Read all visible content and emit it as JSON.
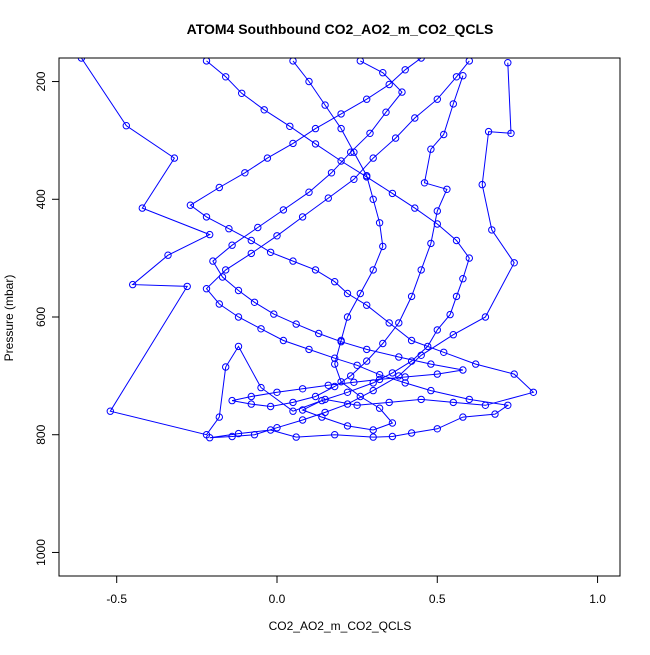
{
  "chart_data": {
    "type": "scatter",
    "title": "ATOM4 Southbound CO2_AO2_m_CO2_QCLS",
    "xlabel": "CO2_AO2_m_CO2_QCLS",
    "ylabel": "Pressure (mbar)",
    "xlim": [
      -0.68,
      1.07
    ],
    "ylim": [
      1040,
      160
    ],
    "y_reversed": true,
    "x_ticks": [
      -0.5,
      0.0,
      0.5,
      1.0
    ],
    "x_tick_labels": [
      "-0.5",
      "0.0",
      "0.5",
      "1.0"
    ],
    "y_ticks": [
      200,
      400,
      600,
      800,
      1000
    ],
    "y_tick_labels": [
      "200",
      "400",
      "600",
      "800",
      "1000"
    ],
    "grid": false,
    "legend": "none",
    "marker": "open-circle",
    "connect_points": true,
    "series_color": "#0000ff",
    "series": [
      {
        "name": "",
        "points": [
          [
            -0.61,
            160
          ],
          [
            -0.47,
            275
          ],
          [
            -0.32,
            330
          ],
          [
            -0.42,
            415
          ],
          [
            -0.21,
            460
          ],
          [
            -0.34,
            495
          ],
          [
            -0.45,
            545
          ],
          [
            -0.28,
            548
          ],
          [
            -0.52,
            760
          ],
          [
            -0.22,
            800
          ],
          [
            -0.18,
            770
          ],
          [
            -0.16,
            685
          ],
          [
            -0.12,
            650
          ],
          [
            -0.05,
            720
          ],
          [
            0.05,
            760
          ],
          [
            0.15,
            740
          ],
          [
            0.25,
            750
          ],
          [
            0.35,
            745
          ],
          [
            0.45,
            740
          ],
          [
            0.55,
            745
          ],
          [
            0.65,
            750
          ],
          [
            0.8,
            728
          ],
          [
            0.74,
            697
          ],
          [
            0.62,
            680
          ],
          [
            0.52,
            660
          ],
          [
            0.42,
            640
          ],
          [
            0.35,
            610
          ],
          [
            0.28,
            580
          ],
          [
            0.22,
            560
          ],
          [
            0.18,
            540
          ],
          [
            0.12,
            520
          ],
          [
            0.05,
            505
          ],
          [
            -0.02,
            490
          ],
          [
            -0.08,
            470
          ],
          [
            -0.15,
            450
          ],
          [
            -0.22,
            430
          ],
          [
            -0.27,
            410
          ],
          [
            -0.18,
            380
          ],
          [
            -0.1,
            355
          ],
          [
            -0.03,
            330
          ],
          [
            0.05,
            305
          ],
          [
            0.12,
            280
          ],
          [
            0.2,
            255
          ],
          [
            0.28,
            230
          ],
          [
            0.35,
            205
          ],
          [
            0.4,
            180
          ],
          [
            0.45,
            160
          ]
        ]
      },
      {
        "name": "",
        "points": [
          [
            0.72,
            168
          ],
          [
            0.73,
            288
          ],
          [
            0.66,
            285
          ],
          [
            0.64,
            375
          ],
          [
            0.67,
            452
          ],
          [
            0.74,
            508
          ],
          [
            0.65,
            600
          ],
          [
            0.55,
            630
          ],
          [
            0.45,
            665
          ],
          [
            0.38,
            700
          ],
          [
            0.3,
            725
          ],
          [
            0.22,
            748
          ],
          [
            0.15,
            762
          ],
          [
            0.08,
            775
          ],
          [
            0.0,
            788
          ],
          [
            -0.07,
            800
          ],
          [
            -0.14,
            803
          ],
          [
            -0.21,
            805
          ],
          [
            -0.12,
            798
          ],
          [
            -0.02,
            792
          ],
          [
            0.06,
            804
          ],
          [
            0.18,
            800
          ],
          [
            0.3,
            804
          ],
          [
            0.36,
            803
          ],
          [
            0.42,
            797
          ],
          [
            0.5,
            790
          ],
          [
            0.58,
            770
          ],
          [
            0.68,
            765
          ],
          [
            0.72,
            750
          ],
          [
            0.6,
            740
          ],
          [
            0.48,
            725
          ],
          [
            0.4,
            712
          ],
          [
            0.32,
            698
          ],
          [
            0.25,
            682
          ],
          [
            0.18,
            670
          ],
          [
            0.1,
            655
          ],
          [
            0.02,
            640
          ],
          [
            -0.05,
            620
          ],
          [
            -0.12,
            600
          ],
          [
            -0.18,
            578
          ],
          [
            -0.22,
            552
          ],
          [
            -0.16,
            520
          ],
          [
            -0.08,
            492
          ],
          [
            0.0,
            462
          ],
          [
            0.08,
            430
          ],
          [
            0.16,
            398
          ],
          [
            0.24,
            366
          ],
          [
            0.3,
            330
          ],
          [
            0.37,
            296
          ],
          [
            0.43,
            262
          ],
          [
            0.5,
            230
          ],
          [
            0.56,
            192
          ],
          [
            0.6,
            165
          ]
        ]
      },
      {
        "name": "",
        "points": [
          [
            0.58,
            190
          ],
          [
            0.55,
            238
          ],
          [
            0.52,
            290
          ],
          [
            0.48,
            315
          ],
          [
            0.46,
            372
          ],
          [
            0.53,
            383
          ],
          [
            0.5,
            420
          ],
          [
            0.48,
            475
          ],
          [
            0.45,
            520
          ],
          [
            0.42,
            565
          ],
          [
            0.38,
            610
          ],
          [
            0.33,
            645
          ],
          [
            0.28,
            675
          ],
          [
            0.23,
            700
          ],
          [
            0.18,
            718
          ],
          [
            0.12,
            735
          ],
          [
            0.05,
            745
          ],
          [
            -0.02,
            752
          ],
          [
            -0.08,
            748
          ],
          [
            -0.14,
            742
          ],
          [
            -0.08,
            735
          ],
          [
            0.0,
            728
          ],
          [
            0.08,
            722
          ],
          [
            0.16,
            716
          ],
          [
            0.24,
            711
          ],
          [
            0.32,
            706
          ],
          [
            0.4,
            702
          ],
          [
            0.5,
            697
          ],
          [
            0.58,
            690
          ],
          [
            0.48,
            680
          ],
          [
            0.38,
            668
          ],
          [
            0.28,
            655
          ],
          [
            0.2,
            642
          ],
          [
            0.13,
            628
          ],
          [
            0.06,
            612
          ],
          [
            -0.01,
            595
          ],
          [
            -0.07,
            575
          ],
          [
            -0.12,
            555
          ],
          [
            -0.17,
            532
          ],
          [
            -0.2,
            505
          ],
          [
            -0.14,
            478
          ],
          [
            -0.06,
            448
          ],
          [
            0.02,
            418
          ],
          [
            0.1,
            388
          ],
          [
            0.17,
            355
          ],
          [
            0.23,
            320
          ],
          [
            0.29,
            288
          ],
          [
            0.34,
            252
          ],
          [
            0.39,
            218
          ],
          [
            0.33,
            185
          ],
          [
            0.26,
            165
          ]
        ]
      },
      {
        "name": "",
        "points": [
          [
            0.05,
            165
          ],
          [
            0.1,
            200
          ],
          [
            0.15,
            240
          ],
          [
            0.2,
            280
          ],
          [
            0.24,
            320
          ],
          [
            0.28,
            360
          ],
          [
            0.3,
            400
          ],
          [
            0.32,
            440
          ],
          [
            0.33,
            480
          ],
          [
            0.3,
            520
          ],
          [
            0.26,
            560
          ],
          [
            0.22,
            600
          ],
          [
            0.2,
            640
          ],
          [
            0.18,
            680
          ],
          [
            0.2,
            710
          ],
          [
            0.26,
            735
          ],
          [
            0.32,
            755
          ],
          [
            0.36,
            780
          ],
          [
            0.3,
            792
          ],
          [
            0.22,
            785
          ],
          [
            0.14,
            770
          ],
          [
            0.08,
            758
          ],
          [
            0.14,
            742
          ],
          [
            0.22,
            728
          ],
          [
            0.3,
            712
          ],
          [
            0.36,
            695
          ],
          [
            0.42,
            675
          ],
          [
            0.47,
            650
          ],
          [
            0.5,
            622
          ],
          [
            0.54,
            596
          ],
          [
            0.56,
            565
          ],
          [
            0.58,
            535
          ],
          [
            0.6,
            500
          ],
          [
            0.56,
            470
          ],
          [
            0.5,
            442
          ],
          [
            0.43,
            415
          ],
          [
            0.36,
            390
          ],
          [
            0.28,
            362
          ],
          [
            0.2,
            335
          ],
          [
            0.12,
            306
          ],
          [
            0.04,
            276
          ],
          [
            -0.04,
            248
          ],
          [
            -0.11,
            220
          ],
          [
            -0.16,
            192
          ],
          [
            -0.22,
            165
          ]
        ]
      }
    ]
  }
}
